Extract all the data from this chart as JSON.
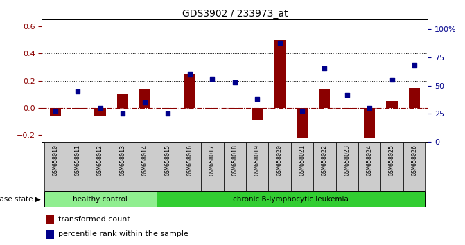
{
  "title": "GDS3902 / 233973_at",
  "samples": [
    "GSM658010",
    "GSM658011",
    "GSM658012",
    "GSM658013",
    "GSM658014",
    "GSM658015",
    "GSM658016",
    "GSM658017",
    "GSM658018",
    "GSM658019",
    "GSM658020",
    "GSM658021",
    "GSM658022",
    "GSM658023",
    "GSM658024",
    "GSM658025",
    "GSM658026"
  ],
  "red_bars": [
    -0.06,
    -0.01,
    -0.06,
    0.1,
    0.14,
    -0.01,
    0.25,
    -0.01,
    -0.01,
    -0.09,
    0.5,
    -0.22,
    0.14,
    -0.01,
    -0.22,
    0.05,
    0.15
  ],
  "blue_dots_pct": [
    28,
    45,
    30,
    25,
    35,
    25,
    60,
    56,
    53,
    38,
    88,
    28,
    65,
    42,
    30,
    55,
    68
  ],
  "ylim_left": [
    -0.25,
    0.65
  ],
  "ylim_right": [
    0,
    108.33
  ],
  "yticks_left": [
    -0.2,
    0.0,
    0.2,
    0.4,
    0.6
  ],
  "yticks_right": [
    0,
    25,
    50,
    75,
    100
  ],
  "ytick_labels_right": [
    "0",
    "25",
    "50",
    "75",
    "100%"
  ],
  "hlines": [
    0.2,
    0.4
  ],
  "healthy_count": 5,
  "label_red": "transformed count",
  "label_blue": "percentile rank within the sample",
  "group1_label": "healthy control",
  "group2_label": "chronic B-lymphocytic leukemia",
  "disease_state_label": "disease state",
  "bar_color": "#8B0000",
  "dot_color": "#00008B",
  "background_color": "#FFFFFF",
  "plot_bg_color": "#FFFFFF",
  "group1_color": "#90EE90",
  "group2_color": "#32CD32",
  "tick_box_color": "#CCCCCC"
}
